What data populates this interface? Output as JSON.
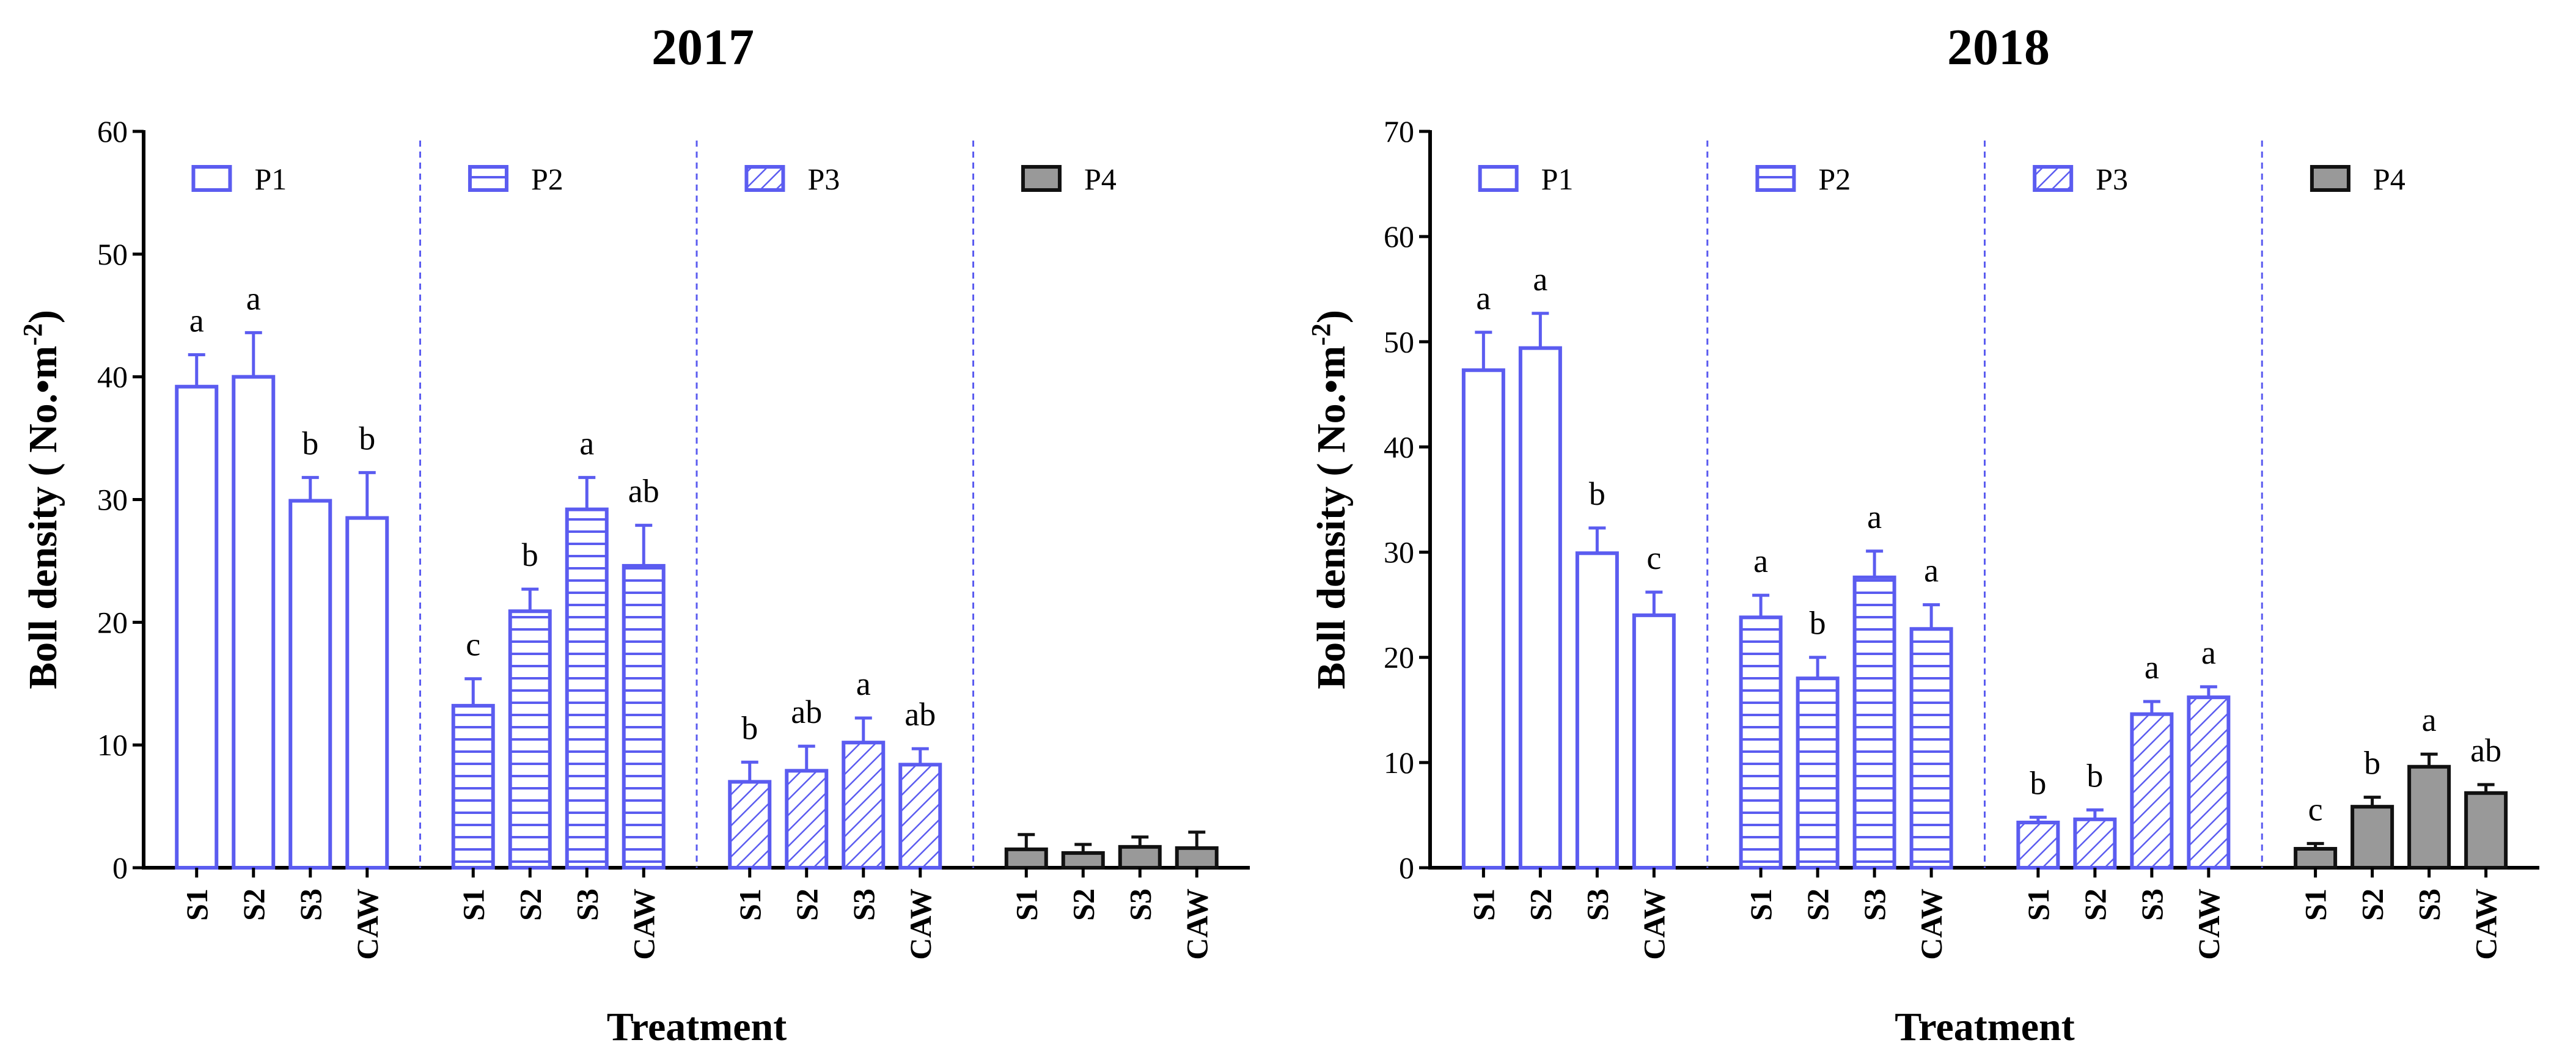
{
  "chart_data": [
    {
      "type": "bar",
      "title": "2017",
      "xlabel": "Treatment",
      "ylabel": "Boll density ( No.•m",
      "ylabel_superscript": "-2",
      "ylabel_close": ")",
      "ylim": [
        0,
        60
      ],
      "yticks": [
        0,
        10,
        20,
        30,
        40,
        50,
        60
      ],
      "categories": [
        "S1",
        "S2",
        "S3",
        "CAW"
      ],
      "series": [
        {
          "name": "P1",
          "pattern": "open",
          "values": [
            39.2,
            40.0,
            29.9,
            28.5
          ],
          "errors": [
            2.6,
            3.6,
            1.9,
            3.7
          ],
          "letters": [
            "a",
            "a",
            "b",
            "b"
          ]
        },
        {
          "name": "P2",
          "pattern": "horizontal",
          "values": [
            13.2,
            20.9,
            29.2,
            24.6
          ],
          "errors": [
            2.2,
            1.8,
            2.6,
            3.3
          ],
          "letters": [
            "c",
            "b",
            "a",
            "ab"
          ]
        },
        {
          "name": "P3",
          "pattern": "diagonal",
          "values": [
            7.0,
            7.9,
            10.2,
            8.4
          ],
          "errors": [
            1.6,
            2.0,
            2.0,
            1.3
          ],
          "letters": [
            "b",
            "ab",
            "a",
            "ab"
          ]
        },
        {
          "name": "P4",
          "pattern": "filled",
          "values": [
            1.5,
            1.2,
            1.7,
            1.6
          ],
          "errors": [
            1.2,
            0.7,
            0.8,
            1.3
          ],
          "letters": [
            "",
            "",
            "",
            ""
          ]
        }
      ]
    },
    {
      "type": "bar",
      "title": "2018",
      "xlabel": "Treatment",
      "ylabel": "Boll density ( No.•m",
      "ylabel_superscript": "-2",
      "ylabel_close": ")",
      "ylim": [
        0,
        70
      ],
      "yticks": [
        0,
        10,
        20,
        30,
        40,
        50,
        60,
        70
      ],
      "categories": [
        "S1",
        "S2",
        "S3",
        "CAW"
      ],
      "series": [
        {
          "name": "P1",
          "pattern": "open",
          "values": [
            47.3,
            49.4,
            29.9,
            24.0
          ],
          "errors": [
            3.6,
            3.3,
            2.4,
            2.2
          ],
          "letters": [
            "a",
            "a",
            "b",
            "c"
          ]
        },
        {
          "name": "P2",
          "pattern": "horizontal",
          "values": [
            23.8,
            18.0,
            27.6,
            22.7
          ],
          "errors": [
            2.1,
            2.0,
            2.5,
            2.3
          ],
          "letters": [
            "a",
            "b",
            "a",
            "a"
          ]
        },
        {
          "name": "P3",
          "pattern": "diagonal",
          "values": [
            4.3,
            4.6,
            14.6,
            16.2
          ],
          "errors": [
            0.5,
            0.9,
            1.2,
            1.0
          ],
          "letters": [
            "b",
            "b",
            "a",
            "a"
          ]
        },
        {
          "name": "P4",
          "pattern": "filled",
          "values": [
            1.8,
            5.8,
            9.6,
            7.1
          ],
          "errors": [
            0.5,
            0.9,
            1.2,
            0.8
          ],
          "letters": [
            "c",
            "b",
            "a",
            "ab"
          ]
        }
      ]
    }
  ],
  "colors": {
    "bar_stroke": "#5b5cf0",
    "p4_fill": "#999999",
    "p4_stroke": "#111111",
    "axis": "#000000",
    "divider": "#5b5cf0"
  }
}
